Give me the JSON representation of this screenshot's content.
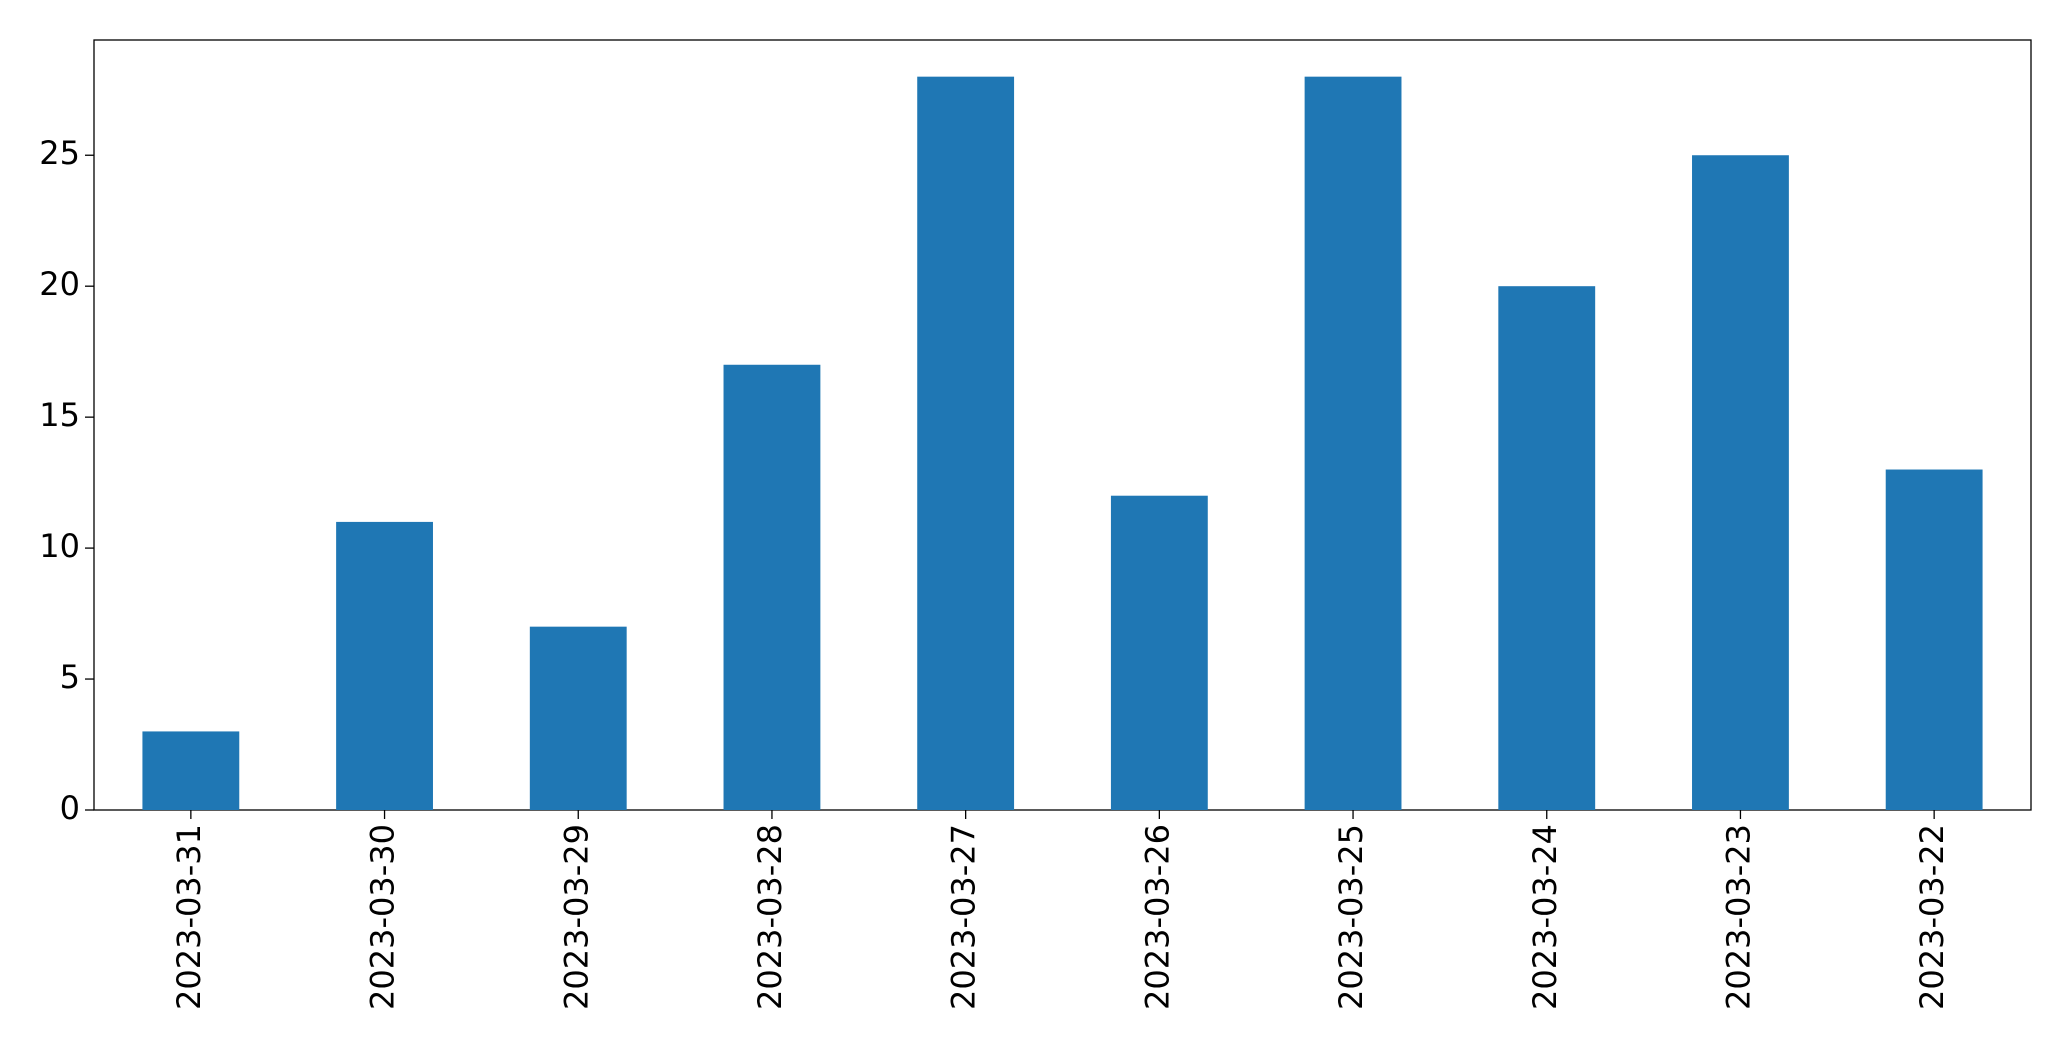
{
  "chart_data": {
    "type": "bar",
    "categories": [
      "2023-03-31",
      "2023-03-30",
      "2023-03-29",
      "2023-03-28",
      "2023-03-27",
      "2023-03-26",
      "2023-03-25",
      "2023-03-24",
      "2023-03-23",
      "2023-03-22"
    ],
    "values": [
      3,
      11,
      7,
      17,
      28,
      12,
      28,
      20,
      25,
      13
    ],
    "color": "#1f77b4",
    "ylim": [
      0,
      29.4
    ],
    "yticks": [
      0,
      5,
      10,
      15,
      20,
      25
    ],
    "grid": false
  }
}
